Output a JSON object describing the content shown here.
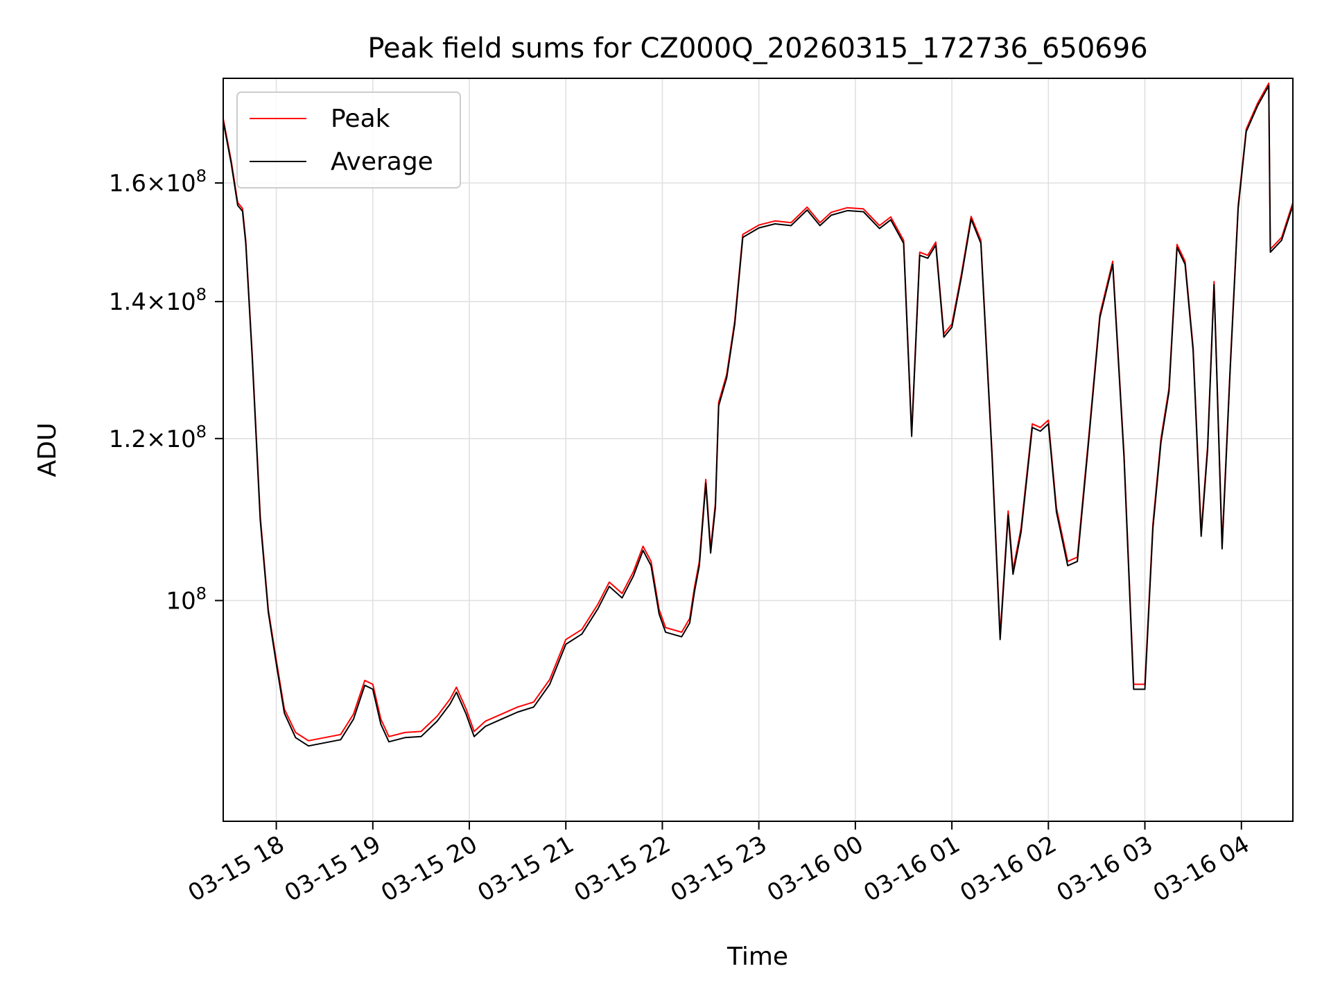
{
  "chart_data": {
    "type": "line",
    "title": "Peak field sums for CZ000Q_20260315_172736_650696",
    "xlabel": "Time",
    "ylabel": "ADU",
    "yscale": "log",
    "grid": true,
    "legend_placement": "upper-left",
    "xlim": [
      "2026-03-15 17:27",
      "2026-03-16 04:32"
    ],
    "ylim": [
      78000000,
      180000000
    ],
    "x_ticks": [
      {
        "t": "2026-03-15 18:00",
        "label": "03-15 18"
      },
      {
        "t": "2026-03-15 19:00",
        "label": "03-15 19"
      },
      {
        "t": "2026-03-15 20:00",
        "label": "03-15 20"
      },
      {
        "t": "2026-03-15 21:00",
        "label": "03-15 21"
      },
      {
        "t": "2026-03-15 22:00",
        "label": "03-15 22"
      },
      {
        "t": "2026-03-15 23:00",
        "label": "03-15 23"
      },
      {
        "t": "2026-03-16 00:00",
        "label": "03-16 00"
      },
      {
        "t": "2026-03-16 01:00",
        "label": "03-16 01"
      },
      {
        "t": "2026-03-16 02:00",
        "label": "03-16 02"
      },
      {
        "t": "2026-03-16 03:00",
        "label": "03-16 03"
      },
      {
        "t": "2026-03-16 04:00",
        "label": "03-16 04"
      }
    ],
    "y_ticks": [
      {
        "value": 100000000,
        "mantissa": "",
        "exponent": "8"
      },
      {
        "value": 120000000,
        "mantissa": "1.2",
        "exponent": "8"
      },
      {
        "value": 140000000,
        "mantissa": "1.4",
        "exponent": "8"
      },
      {
        "value": 160000000,
        "mantissa": "1.6",
        "exponent": "8"
      }
    ],
    "series": [
      {
        "name": "Peak",
        "color": "#ff0000",
        "points": [
          [
            "2026-03-15 17:27",
            172000000
          ],
          [
            "2026-03-15 17:32",
            164000000
          ],
          [
            "2026-03-15 17:36",
            156500000
          ],
          [
            "2026-03-15 17:39",
            155500000
          ],
          [
            "2026-03-15 17:41",
            150000000
          ],
          [
            "2026-03-15 17:45",
            132000000
          ],
          [
            "2026-03-15 17:50",
            110000000
          ],
          [
            "2026-03-15 17:55",
            99000000
          ],
          [
            "2026-03-15 18:00",
            93500000
          ],
          [
            "2026-03-15 18:05",
            88500000
          ],
          [
            "2026-03-15 18:12",
            86200000
          ],
          [
            "2026-03-15 18:20",
            85400000
          ],
          [
            "2026-03-15 18:30",
            85700000
          ],
          [
            "2026-03-15 18:40",
            86000000
          ],
          [
            "2026-03-15 18:48",
            88000000
          ],
          [
            "2026-03-15 18:55",
            91400000
          ],
          [
            "2026-03-15 19:00",
            91000000
          ],
          [
            "2026-03-15 19:05",
            87500000
          ],
          [
            "2026-03-15 19:10",
            85800000
          ],
          [
            "2026-03-15 19:20",
            86200000
          ],
          [
            "2026-03-15 19:30",
            86300000
          ],
          [
            "2026-03-15 19:40",
            87800000
          ],
          [
            "2026-03-15 19:48",
            89500000
          ],
          [
            "2026-03-15 19:52",
            90700000
          ],
          [
            "2026-03-15 19:58",
            88500000
          ],
          [
            "2026-03-15 20:03",
            86300000
          ],
          [
            "2026-03-15 20:10",
            87300000
          ],
          [
            "2026-03-15 20:20",
            88000000
          ],
          [
            "2026-03-15 20:30",
            88700000
          ],
          [
            "2026-03-15 20:40",
            89200000
          ],
          [
            "2026-03-15 20:50",
            91500000
          ],
          [
            "2026-03-15 21:00",
            95700000
          ],
          [
            "2026-03-15 21:10",
            96800000
          ],
          [
            "2026-03-15 21:20",
            99600000
          ],
          [
            "2026-03-15 21:27",
            102100000
          ],
          [
            "2026-03-15 21:35",
            100800000
          ],
          [
            "2026-03-15 21:42",
            103300000
          ],
          [
            "2026-03-15 21:48",
            106300000
          ],
          [
            "2026-03-15 21:53",
            104500000
          ],
          [
            "2026-03-15 21:58",
            99000000
          ],
          [
            "2026-03-15 22:02",
            97000000
          ],
          [
            "2026-03-15 22:12",
            96500000
          ],
          [
            "2026-03-15 22:17",
            98000000
          ],
          [
            "2026-03-15 22:20",
            101500000
          ],
          [
            "2026-03-15 22:23",
            104500000
          ],
          [
            "2026-03-15 22:27",
            114600000
          ],
          [
            "2026-03-15 22:30",
            106000000
          ],
          [
            "2026-03-15 22:33",
            111600000
          ],
          [
            "2026-03-15 22:35",
            125000000
          ],
          [
            "2026-03-15 22:40",
            129000000
          ],
          [
            "2026-03-15 22:45",
            137000000
          ],
          [
            "2026-03-15 22:50",
            151000000
          ],
          [
            "2026-03-15 23:00",
            152600000
          ],
          [
            "2026-03-15 23:10",
            153300000
          ],
          [
            "2026-03-15 23:20",
            153000000
          ],
          [
            "2026-03-15 23:30",
            155700000
          ],
          [
            "2026-03-15 23:38",
            153000000
          ],
          [
            "2026-03-15 23:45",
            154800000
          ],
          [
            "2026-03-15 23:55",
            155600000
          ],
          [
            "2026-03-16 00:05",
            155400000
          ],
          [
            "2026-03-16 00:15",
            152500000
          ],
          [
            "2026-03-16 00:22",
            154000000
          ],
          [
            "2026-03-16 00:30",
            150000000
          ],
          [
            "2026-03-16 00:35",
            120800000
          ],
          [
            "2026-03-16 00:40",
            148000000
          ],
          [
            "2026-03-16 00:45",
            147500000
          ],
          [
            "2026-03-16 00:50",
            149700000
          ],
          [
            "2026-03-16 00:55",
            135000000
          ],
          [
            "2026-03-16 01:00",
            136500000
          ],
          [
            "2026-03-16 01:06",
            144500000
          ],
          [
            "2026-03-16 01:12",
            154100000
          ],
          [
            "2026-03-16 01:18",
            150000000
          ],
          [
            "2026-03-16 01:25",
            118000000
          ],
          [
            "2026-03-16 01:30",
            96200000
          ],
          [
            "2026-03-16 01:35",
            110600000
          ],
          [
            "2026-03-16 01:38",
            103500000
          ],
          [
            "2026-03-16 01:43",
            108500000
          ],
          [
            "2026-03-16 01:50",
            122000000
          ],
          [
            "2026-03-16 01:55",
            121500000
          ],
          [
            "2026-03-16 02:00",
            122500000
          ],
          [
            "2026-03-16 02:05",
            111000000
          ],
          [
            "2026-03-16 02:12",
            104500000
          ],
          [
            "2026-03-16 02:18",
            105000000
          ],
          [
            "2026-03-16 02:25",
            120000000
          ],
          [
            "2026-03-16 02:32",
            138000000
          ],
          [
            "2026-03-16 02:40",
            146500000
          ],
          [
            "2026-03-16 02:47",
            118000000
          ],
          [
            "2026-03-16 02:53",
            91000000
          ],
          [
            "2026-03-16 03:00",
            91000000
          ],
          [
            "2026-03-16 03:05",
            109000000
          ],
          [
            "2026-03-16 03:10",
            120000000
          ],
          [
            "2026-03-16 03:15",
            127000000
          ],
          [
            "2026-03-16 03:20",
            149300000
          ],
          [
            "2026-03-16 03:25",
            146500000
          ],
          [
            "2026-03-16 03:30",
            133000000
          ],
          [
            "2026-03-16 03:35",
            108000000
          ],
          [
            "2026-03-16 03:39",
            119000000
          ],
          [
            "2026-03-16 03:43",
            143200000
          ],
          [
            "2026-03-16 03:48",
            106500000
          ],
          [
            "2026-03-16 03:53",
            130000000
          ],
          [
            "2026-03-16 03:58",
            156000000
          ],
          [
            "2026-03-16 04:03",
            170000000
          ],
          [
            "2026-03-16 04:10",
            175000000
          ],
          [
            "2026-03-16 04:17",
            179000000
          ],
          [
            "2026-03-16 04:18",
            148500000
          ],
          [
            "2026-03-16 04:25",
            150500000
          ],
          [
            "2026-03-16 04:32",
            156500000
          ]
        ]
      },
      {
        "name": "Average",
        "color": "#000000",
        "points": [
          [
            "2026-03-15 17:27",
            171500000
          ],
          [
            "2026-03-15 17:32",
            163500000
          ],
          [
            "2026-03-15 17:36",
            156000000
          ],
          [
            "2026-03-15 17:39",
            155000000
          ],
          [
            "2026-03-15 17:41",
            149500000
          ],
          [
            "2026-03-15 17:45",
            131500000
          ],
          [
            "2026-03-15 17:50",
            109500000
          ],
          [
            "2026-03-15 17:55",
            98700000
          ],
          [
            "2026-03-15 18:00",
            93100000
          ],
          [
            "2026-03-15 18:05",
            88100000
          ],
          [
            "2026-03-15 18:12",
            85700000
          ],
          [
            "2026-03-15 18:20",
            84900000
          ],
          [
            "2026-03-15 18:30",
            85200000
          ],
          [
            "2026-03-15 18:40",
            85500000
          ],
          [
            "2026-03-15 18:48",
            87500000
          ],
          [
            "2026-03-15 18:55",
            90900000
          ],
          [
            "2026-03-15 19:00",
            90500000
          ],
          [
            "2026-03-15 19:05",
            87000000
          ],
          [
            "2026-03-15 19:10",
            85300000
          ],
          [
            "2026-03-15 19:20",
            85700000
          ],
          [
            "2026-03-15 19:30",
            85800000
          ],
          [
            "2026-03-15 19:40",
            87300000
          ],
          [
            "2026-03-15 19:48",
            89000000
          ],
          [
            "2026-03-15 19:52",
            90200000
          ],
          [
            "2026-03-15 19:58",
            88000000
          ],
          [
            "2026-03-15 20:03",
            85800000
          ],
          [
            "2026-03-15 20:10",
            86800000
          ],
          [
            "2026-03-15 20:20",
            87500000
          ],
          [
            "2026-03-15 20:30",
            88200000
          ],
          [
            "2026-03-15 20:40",
            88700000
          ],
          [
            "2026-03-15 20:50",
            91000000
          ],
          [
            "2026-03-15 21:00",
            95200000
          ],
          [
            "2026-03-15 21:10",
            96300000
          ],
          [
            "2026-03-15 21:20",
            99100000
          ],
          [
            "2026-03-15 21:27",
            101600000
          ],
          [
            "2026-03-15 21:35",
            100300000
          ],
          [
            "2026-03-15 21:42",
            102800000
          ],
          [
            "2026-03-15 21:48",
            105800000
          ],
          [
            "2026-03-15 21:53",
            104000000
          ],
          [
            "2026-03-15 21:58",
            98500000
          ],
          [
            "2026-03-15 22:02",
            96500000
          ],
          [
            "2026-03-15 22:12",
            96000000
          ],
          [
            "2026-03-15 22:17",
            97500000
          ],
          [
            "2026-03-15 22:20",
            101000000
          ],
          [
            "2026-03-15 22:23",
            104000000
          ],
          [
            "2026-03-15 22:27",
            114100000
          ],
          [
            "2026-03-15 22:30",
            105500000
          ],
          [
            "2026-03-15 22:33",
            111100000
          ],
          [
            "2026-03-15 22:35",
            124500000
          ],
          [
            "2026-03-15 22:40",
            128500000
          ],
          [
            "2026-03-15 22:45",
            136500000
          ],
          [
            "2026-03-15 22:50",
            150500000
          ],
          [
            "2026-03-15 23:00",
            152100000
          ],
          [
            "2026-03-15 23:10",
            152800000
          ],
          [
            "2026-03-15 23:20",
            152500000
          ],
          [
            "2026-03-15 23:30",
            155200000
          ],
          [
            "2026-03-15 23:38",
            152500000
          ],
          [
            "2026-03-15 23:45",
            154300000
          ],
          [
            "2026-03-15 23:55",
            155100000
          ],
          [
            "2026-03-16 00:05",
            154900000
          ],
          [
            "2026-03-16 00:15",
            152000000
          ],
          [
            "2026-03-16 00:22",
            153500000
          ],
          [
            "2026-03-16 00:30",
            149500000
          ],
          [
            "2026-03-16 00:35",
            120300000
          ],
          [
            "2026-03-16 00:40",
            147500000
          ],
          [
            "2026-03-16 00:45",
            147000000
          ],
          [
            "2026-03-16 00:50",
            149200000
          ],
          [
            "2026-03-16 00:55",
            134500000
          ],
          [
            "2026-03-16 01:00",
            136000000
          ],
          [
            "2026-03-16 01:06",
            144000000
          ],
          [
            "2026-03-16 01:12",
            153600000
          ],
          [
            "2026-03-16 01:18",
            149500000
          ],
          [
            "2026-03-16 01:25",
            117500000
          ],
          [
            "2026-03-16 01:30",
            95700000
          ],
          [
            "2026-03-16 01:35",
            110100000
          ],
          [
            "2026-03-16 01:38",
            103000000
          ],
          [
            "2026-03-16 01:43",
            108000000
          ],
          [
            "2026-03-16 01:50",
            121500000
          ],
          [
            "2026-03-16 01:55",
            121000000
          ],
          [
            "2026-03-16 02:00",
            122000000
          ],
          [
            "2026-03-16 02:05",
            110500000
          ],
          [
            "2026-03-16 02:12",
            104000000
          ],
          [
            "2026-03-16 02:18",
            104500000
          ],
          [
            "2026-03-16 02:25",
            119500000
          ],
          [
            "2026-03-16 02:32",
            137500000
          ],
          [
            "2026-03-16 02:40",
            146000000
          ],
          [
            "2026-03-16 02:47",
            117500000
          ],
          [
            "2026-03-16 02:53",
            90500000
          ],
          [
            "2026-03-16 03:00",
            90500000
          ],
          [
            "2026-03-16 03:05",
            108500000
          ],
          [
            "2026-03-16 03:10",
            119500000
          ],
          [
            "2026-03-16 03:15",
            126500000
          ],
          [
            "2026-03-16 03:20",
            148800000
          ],
          [
            "2026-03-16 03:25",
            146000000
          ],
          [
            "2026-03-16 03:30",
            132500000
          ],
          [
            "2026-03-16 03:35",
            107500000
          ],
          [
            "2026-03-16 03:39",
            118500000
          ],
          [
            "2026-03-16 03:43",
            142700000
          ],
          [
            "2026-03-16 03:48",
            106000000
          ],
          [
            "2026-03-16 03:53",
            129500000
          ],
          [
            "2026-03-16 03:58",
            155500000
          ],
          [
            "2026-03-16 04:03",
            169500000
          ],
          [
            "2026-03-16 04:10",
            174500000
          ],
          [
            "2026-03-16 04:17",
            178500000
          ],
          [
            "2026-03-16 04:18",
            148000000
          ],
          [
            "2026-03-16 04:25",
            150000000
          ],
          [
            "2026-03-16 04:32",
            156000000
          ]
        ]
      }
    ]
  }
}
